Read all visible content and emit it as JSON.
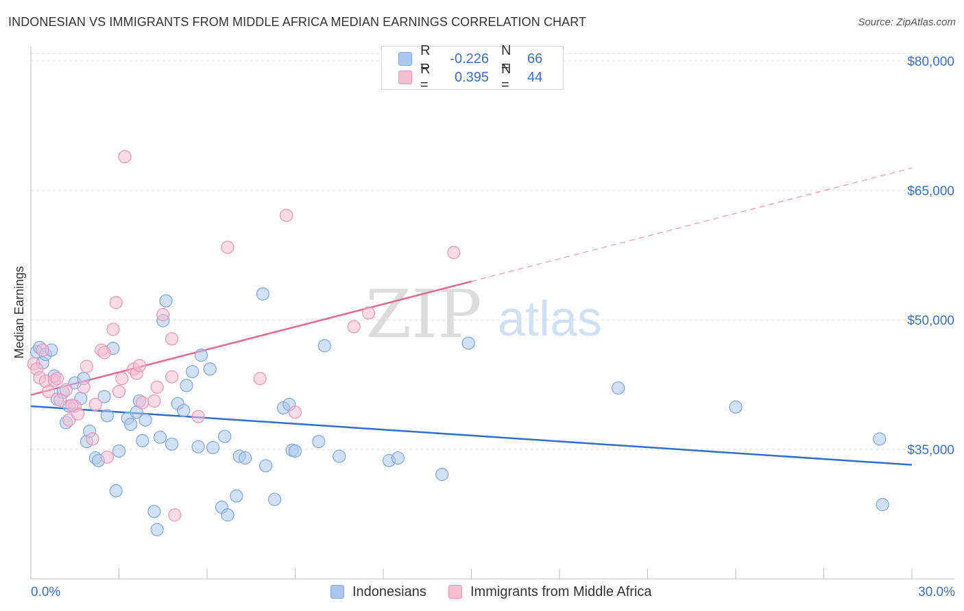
{
  "title": "INDONESIAN VS IMMIGRANTS FROM MIDDLE AFRICA MEDIAN EARNINGS CORRELATION CHART",
  "source": "Source: ZipAtlas.com",
  "watermark": {
    "bold": "ZIP",
    "light": "atlas"
  },
  "legend": {
    "items": [
      {
        "r_label": "R =",
        "r_value": "-0.226",
        "n_label": "N =",
        "n_value": "66",
        "color": "#a9c7ef",
        "edge": "#7aa6e0"
      },
      {
        "r_label": "R =",
        "r_value": "0.395",
        "n_label": "N =",
        "n_value": "44",
        "color": "#f6bcd0",
        "edge": "#ec93b2"
      }
    ]
  },
  "bottom_legend": [
    {
      "label": "Indonesians",
      "color": "#a9c7ef",
      "edge": "#7aa6e0"
    },
    {
      "label": "Immigrants from Middle Africa",
      "color": "#f6bcd0",
      "edge": "#ec93b2"
    }
  ],
  "chart_data": {
    "type": "scatter",
    "title": "INDONESIAN VS IMMIGRANTS FROM MIDDLE AFRICA MEDIAN EARNINGS CORRELATION CHART",
    "xlabel": "",
    "ylabel": "Median Earnings",
    "xlim": [
      0,
      30
    ],
    "ylim": [
      20000,
      81500
    ],
    "x_tick_labels": [
      "0.0%",
      "30.0%"
    ],
    "y_ticks": [
      35000,
      50000,
      65000,
      80000
    ],
    "y_tick_labels": [
      "$35,000",
      "$50,000",
      "$65,000",
      "$80,000"
    ],
    "grid": true,
    "legend_position": "top-center",
    "series": [
      {
        "name": "Indonesians",
        "color": "#7aa6e0",
        "fill": "#a9c7ef",
        "trend_color": "#2f6fce",
        "trend": {
          "x_start": 0,
          "y_start": 40000,
          "x_end": 30,
          "y_end": 33200,
          "dashed_from": null
        },
        "points": [
          [
            0.2,
            46300
          ],
          [
            0.3,
            46800
          ],
          [
            0.4,
            45000
          ],
          [
            0.5,
            46000
          ],
          [
            0.7,
            46500
          ],
          [
            0.8,
            43500
          ],
          [
            0.9,
            40800
          ],
          [
            1.1,
            41600
          ],
          [
            1.2,
            38100
          ],
          [
            1.3,
            40000
          ],
          [
            1.5,
            42700
          ],
          [
            1.7,
            40900
          ],
          [
            1.8,
            43200
          ],
          [
            1.9,
            35900
          ],
          [
            2.0,
            37100
          ],
          [
            2.2,
            34000
          ],
          [
            2.3,
            33700
          ],
          [
            2.5,
            41100
          ],
          [
            2.6,
            38900
          ],
          [
            2.8,
            46700
          ],
          [
            2.9,
            30200
          ],
          [
            3.0,
            34800
          ],
          [
            3.3,
            38600
          ],
          [
            3.4,
            37900
          ],
          [
            3.6,
            39300
          ],
          [
            3.7,
            40600
          ],
          [
            3.8,
            36000
          ],
          [
            3.9,
            38400
          ],
          [
            4.2,
            27800
          ],
          [
            4.3,
            25700
          ],
          [
            4.4,
            36400
          ],
          [
            4.6,
            52200
          ],
          [
            4.5,
            49900
          ],
          [
            4.8,
            35600
          ],
          [
            5.0,
            40300
          ],
          [
            5.2,
            39500
          ],
          [
            5.3,
            42400
          ],
          [
            5.5,
            44000
          ],
          [
            5.7,
            35300
          ],
          [
            5.8,
            45900
          ],
          [
            6.1,
            44300
          ],
          [
            6.2,
            35200
          ],
          [
            6.5,
            28300
          ],
          [
            6.6,
            36500
          ],
          [
            6.7,
            27400
          ],
          [
            7.0,
            29600
          ],
          [
            7.1,
            34200
          ],
          [
            7.3,
            34000
          ],
          [
            7.9,
            53000
          ],
          [
            8.0,
            33100
          ],
          [
            8.3,
            29200
          ],
          [
            8.6,
            39800
          ],
          [
            8.8,
            40200
          ],
          [
            8.9,
            34900
          ],
          [
            9.0,
            34800
          ],
          [
            9.8,
            35900
          ],
          [
            10.0,
            47000
          ],
          [
            10.5,
            34200
          ],
          [
            12.2,
            33700
          ],
          [
            12.5,
            34000
          ],
          [
            14.0,
            32100
          ],
          [
            14.9,
            47300
          ],
          [
            20.0,
            42100
          ],
          [
            24.0,
            39900
          ],
          [
            28.9,
            36200
          ],
          [
            29.0,
            28600
          ]
        ]
      },
      {
        "name": "Immigrants from Middle Africa",
        "color": "#ec93b2",
        "fill": "#f6bcd0",
        "trend_color": "#e5668f",
        "trend": {
          "x_start": 0,
          "y_start": 41300,
          "x_end": 30,
          "y_end": 67600,
          "dashed_from": 15
        },
        "points": [
          [
            0.1,
            44900
          ],
          [
            0.2,
            44300
          ],
          [
            0.3,
            43300
          ],
          [
            0.5,
            42900
          ],
          [
            0.6,
            41700
          ],
          [
            0.8,
            43000
          ],
          [
            0.9,
            43200
          ],
          [
            1.0,
            40700
          ],
          [
            1.2,
            41900
          ],
          [
            1.3,
            38400
          ],
          [
            1.5,
            40000
          ],
          [
            1.6,
            39100
          ],
          [
            1.8,
            42200
          ],
          [
            1.9,
            44600
          ],
          [
            2.1,
            36200
          ],
          [
            2.2,
            40200
          ],
          [
            2.4,
            46500
          ],
          [
            2.5,
            46200
          ],
          [
            2.6,
            34100
          ],
          [
            2.8,
            48900
          ],
          [
            2.9,
            52000
          ],
          [
            3.0,
            41700
          ],
          [
            3.1,
            43200
          ],
          [
            3.2,
            68900
          ],
          [
            3.5,
            44300
          ],
          [
            3.6,
            43800
          ],
          [
            3.7,
            44700
          ],
          [
            3.8,
            40400
          ],
          [
            4.2,
            40600
          ],
          [
            4.3,
            42200
          ],
          [
            4.5,
            50600
          ],
          [
            4.8,
            43400
          ],
          [
            4.8,
            47800
          ],
          [
            4.9,
            27400
          ],
          [
            5.7,
            38800
          ],
          [
            6.7,
            58400
          ],
          [
            7.8,
            43200
          ],
          [
            8.7,
            62100
          ],
          [
            9.0,
            39300
          ],
          [
            11.0,
            49200
          ],
          [
            11.5,
            50800
          ],
          [
            14.4,
            57800
          ],
          [
            0.4,
            46500
          ],
          [
            1.4,
            40100
          ]
        ]
      }
    ]
  }
}
